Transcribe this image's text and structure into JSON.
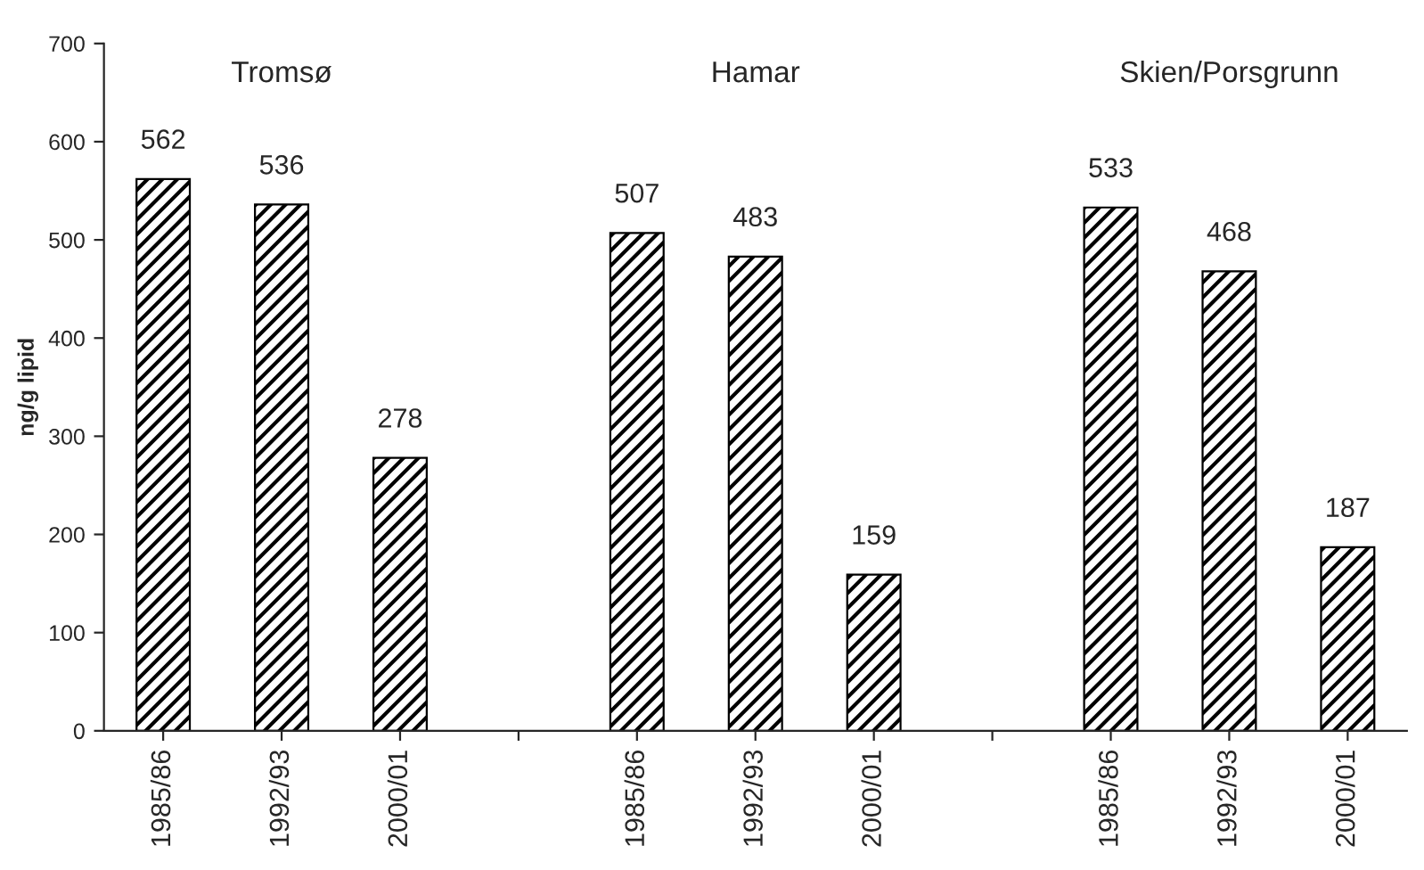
{
  "chart_data": {
    "type": "bar",
    "ylabel": "ng/g lipid",
    "categories": [
      "1985/86",
      "1992/93",
      "2000/01",
      null,
      "1985/86",
      "1992/93",
      "2000/01",
      null,
      "1985/86",
      "1992/93",
      "2000/01"
    ],
    "values": [
      562,
      536,
      278,
      null,
      507,
      483,
      159,
      null,
      533,
      468,
      187
    ],
    "color": "#000000",
    "annotations": [
      "Tromsø",
      "Hamar",
      "Skien/Porsgrunn"
    ],
    "ylim": [
      0,
      700
    ],
    "yticks": [
      0,
      100,
      200,
      300,
      400,
      500,
      600,
      700
    ],
    "data_labels": true,
    "grid": false
  }
}
